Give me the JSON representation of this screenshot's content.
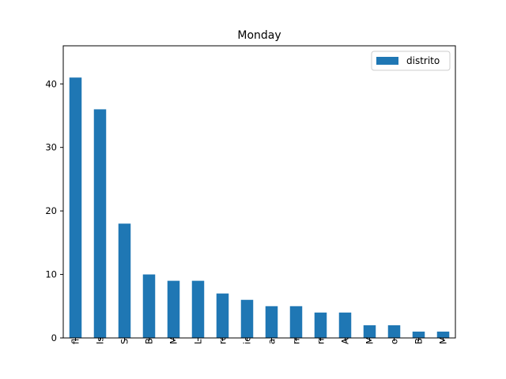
{
  "chart_data": {
    "type": "bar",
    "title": "Monday",
    "xlabel": "",
    "ylabel": "",
    "categories": [
      "flores",
      "Isidro",
      "Surco",
      "Borja",
      "Molina",
      "Lima",
      "rquillo",
      "ictoria",
      "alena",
      "rrillos",
      "rranco",
      "Ate",
      "Miguel",
      "o Libre",
      "Breña",
      "María"
    ],
    "series": [
      {
        "name": "distrito",
        "values": [
          41,
          36,
          18,
          10,
          9,
          9,
          7,
          6,
          5,
          5,
          4,
          4,
          2,
          2,
          1,
          1
        ],
        "color": "#1f77b4"
      }
    ],
    "ylim": [
      0,
      46
    ],
    "yticks": [
      0,
      10,
      20,
      30,
      40
    ],
    "grid": false,
    "legend_position": "top-right"
  }
}
